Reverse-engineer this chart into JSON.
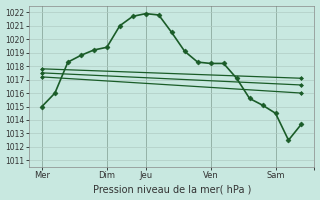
{
  "background_color": "#c8e8e0",
  "grid_color": "#b0ccc4",
  "line_color_dark": "#1a5c28",
  "line_color_med": "#2a7a3a",
  "title": "Pression niveau de la mer( hPa )",
  "ylim": [
    1010.5,
    1022.5
  ],
  "yticks": [
    1011,
    1012,
    1013,
    1014,
    1015,
    1016,
    1017,
    1018,
    1019,
    1020,
    1021,
    1022
  ],
  "xlim": [
    0,
    22
  ],
  "xtick_positions": [
    1,
    6,
    9,
    14,
    19,
    22
  ],
  "xtick_labels": [
    "Mer",
    "Dim",
    "Jeu",
    "Ven",
    "Sam",
    ""
  ],
  "vline_positions": [
    1,
    6,
    9,
    14,
    19
  ],
  "series_main": {
    "x": [
      1,
      2,
      3,
      4,
      5,
      6,
      7,
      8,
      9,
      10,
      11,
      12,
      13,
      14,
      15,
      16,
      17,
      18,
      19,
      20,
      21
    ],
    "y": [
      1015.0,
      1016.0,
      1018.3,
      1018.8,
      1019.2,
      1019.4,
      1021.0,
      1021.7,
      1021.9,
      1021.8,
      1020.5,
      1019.1,
      1018.3,
      1018.2,
      1018.2,
      1017.1,
      1015.6,
      1015.1,
      1014.5,
      1012.5,
      1013.7
    ],
    "marker": "D",
    "markersize": 2.5,
    "linewidth": 1.2
  },
  "series_flat": [
    {
      "x": [
        1,
        21
      ],
      "y": [
        1017.8,
        1017.1
      ],
      "marker": "D",
      "markersize": 2,
      "linewidth": 0.9
    },
    {
      "x": [
        1,
        21
      ],
      "y": [
        1017.5,
        1016.6
      ],
      "marker": "D",
      "markersize": 2,
      "linewidth": 0.9
    },
    {
      "x": [
        1,
        21
      ],
      "y": [
        1017.2,
        1016.0
      ],
      "marker": "D",
      "markersize": 2,
      "linewidth": 0.9
    }
  ]
}
